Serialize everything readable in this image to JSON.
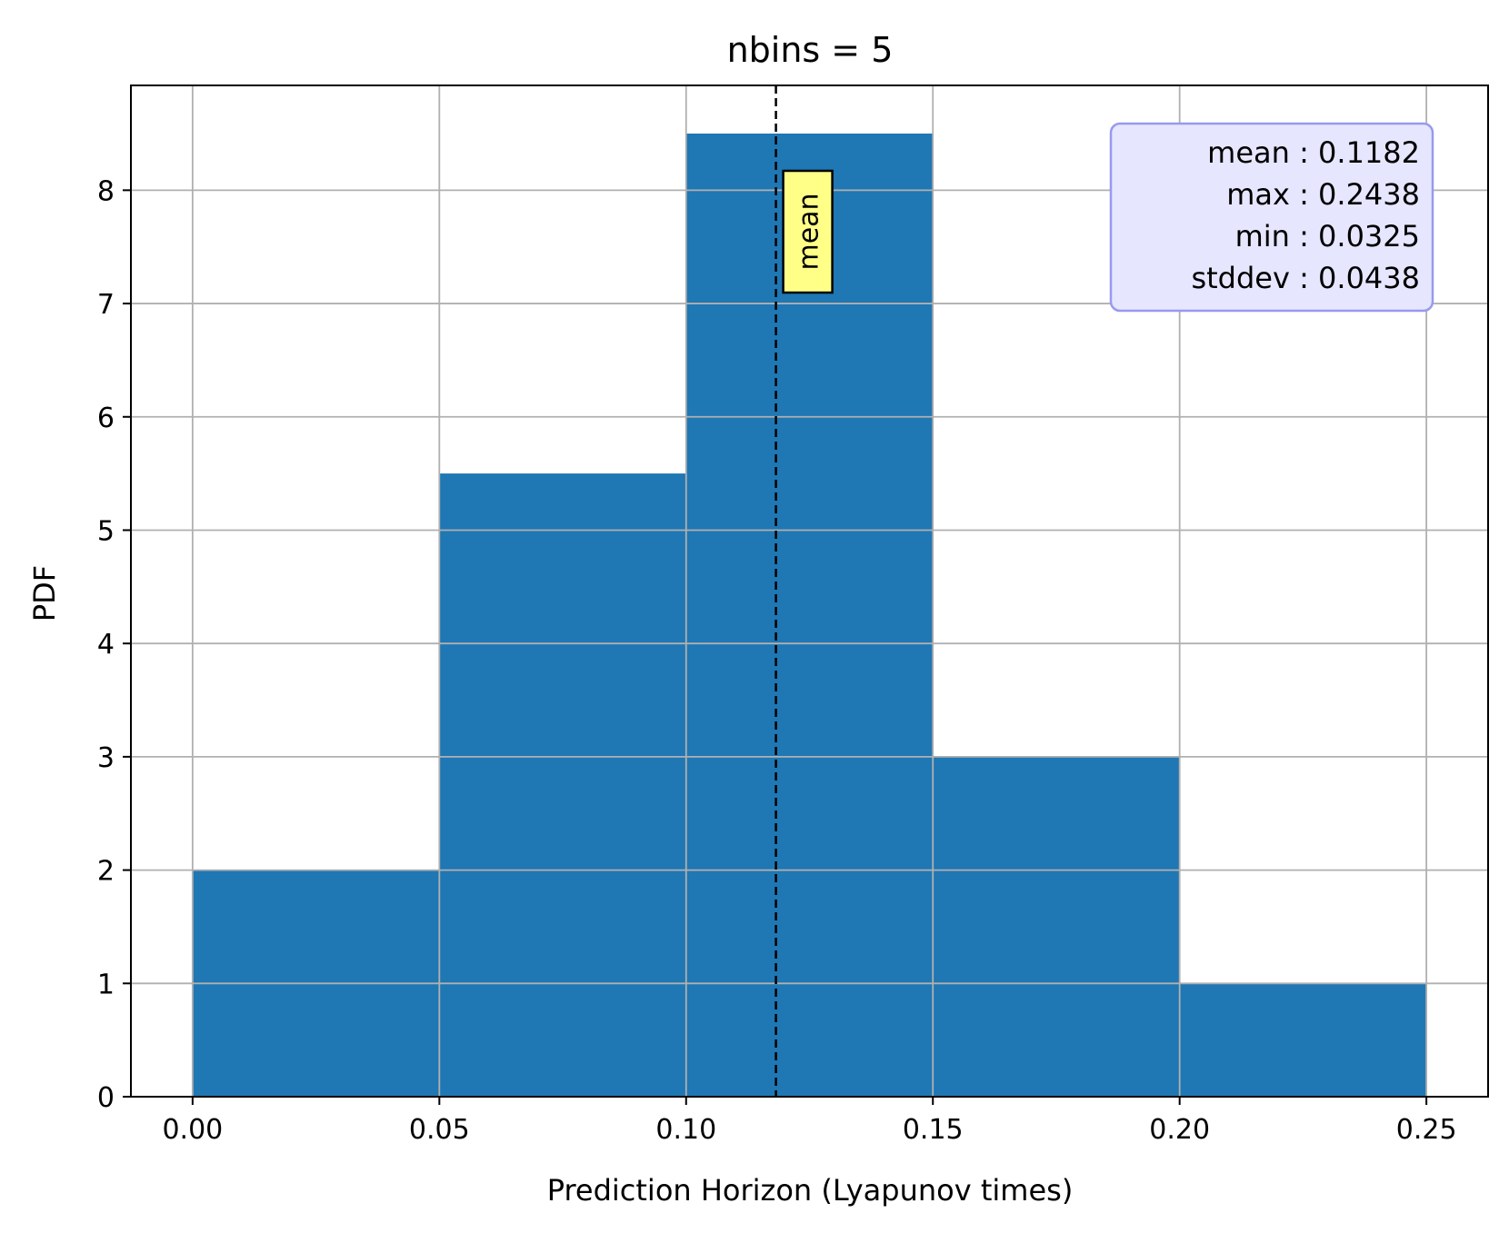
{
  "colors": {
    "bar": "#1f77b4",
    "grid": "#b0b0b0",
    "mean_label_bg": "#ffff88",
    "stats_box_bg": "#e6e6ff",
    "stats_box_border": "#9999ee"
  },
  "chart_data": {
    "type": "bar",
    "title": "nbins = 5",
    "xlabel": "Prediction Horizon (Lyapunov times)",
    "ylabel": "PDF",
    "xlim": [
      -0.0125,
      0.2625
    ],
    "ylim": [
      0,
      8.925
    ],
    "grid": true,
    "xticks": [
      0.0,
      0.05,
      0.1,
      0.15,
      0.2,
      0.25
    ],
    "xtick_labels": [
      "0.00",
      "0.05",
      "0.10",
      "0.15",
      "0.20",
      "0.25"
    ],
    "yticks": [
      0,
      1,
      2,
      3,
      4,
      5,
      6,
      7,
      8
    ],
    "ytick_labels": [
      "0",
      "1",
      "2",
      "3",
      "4",
      "5",
      "6",
      "7",
      "8"
    ],
    "bins": [
      {
        "x0": 0.0,
        "x1": 0.05,
        "value": 2.0
      },
      {
        "x0": 0.05,
        "x1": 0.1,
        "value": 5.5
      },
      {
        "x0": 0.1,
        "x1": 0.15,
        "value": 8.5
      },
      {
        "x0": 0.15,
        "x1": 0.2,
        "value": 3.0
      },
      {
        "x0": 0.2,
        "x1": 0.25,
        "value": 1.0
      }
    ],
    "mean_line": {
      "x": 0.1182,
      "label": "mean"
    },
    "stats_lines": [
      "mean : 0.1182",
      "max : 0.2438",
      "min : 0.0325",
      "stddev : 0.0438"
    ],
    "stats_box_placement": "top-right"
  }
}
